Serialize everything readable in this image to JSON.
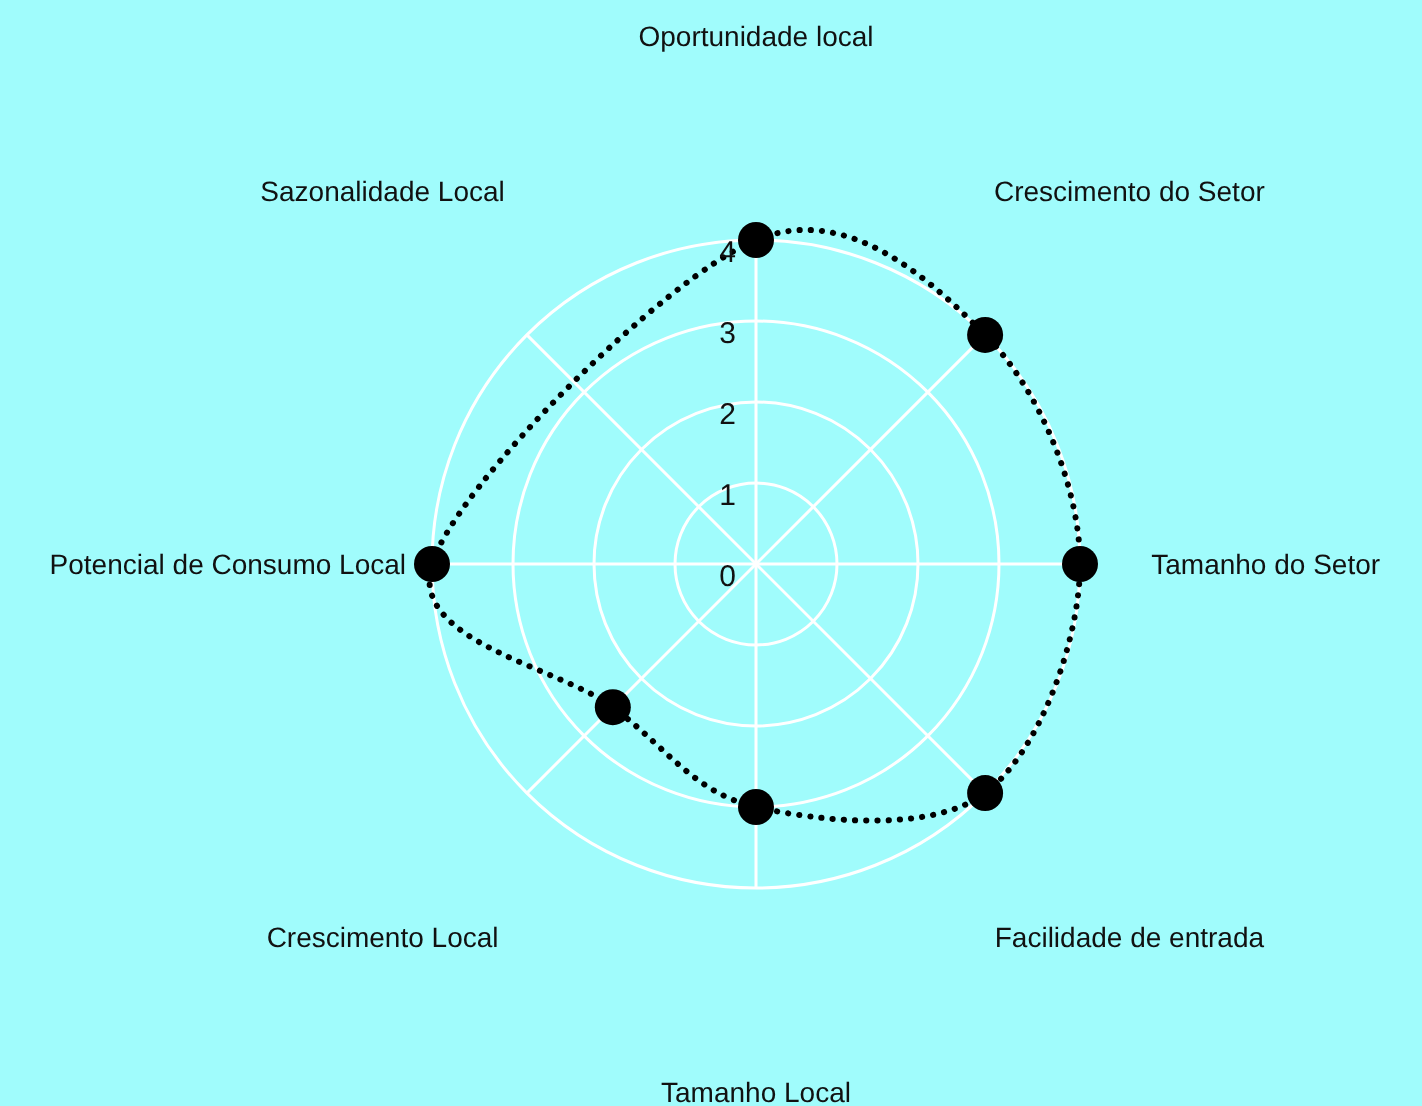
{
  "chart_data": {
    "type": "radar",
    "categories": [
      "Oportunidade local",
      "Crescimento do Setor",
      "Tamanho do Setor",
      "Facilidade de entrada",
      "Tamanho Local",
      "Crescimento Local",
      "Potencial de Consumo Local",
      "Sazonalidade Local"
    ],
    "series": [
      {
        "color": "#000000",
        "values": [
          4,
          4,
          4,
          4,
          3,
          2.5,
          4,
          null
        ]
      }
    ],
    "ylim": [
      0,
      4
    ],
    "yticks": [
      0,
      1,
      2,
      3,
      4
    ],
    "grid": true,
    "marker": "circle",
    "line_style": "dotted"
  }
}
